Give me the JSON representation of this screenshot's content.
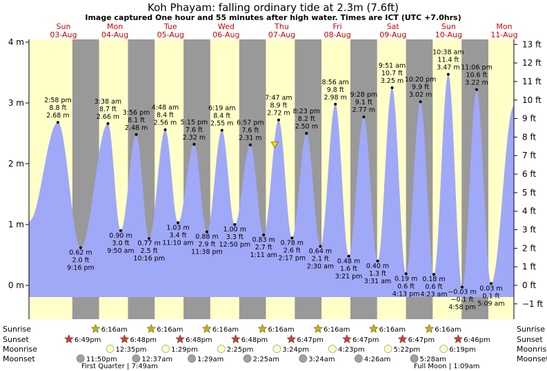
{
  "header": {
    "title": "Koh Phayam: falling  ordinary tide at 2.3m (7.6ft)",
    "subtitle": "Image captured One hour and 55 minutes after high water. Times are ICT (UTC +7.0hrs)"
  },
  "days": [
    {
      "dow": "Sun",
      "date": "03-Aug"
    },
    {
      "dow": "Mon",
      "date": "04-Aug"
    },
    {
      "dow": "Tue",
      "date": "05-Aug"
    },
    {
      "dow": "Wed",
      "date": "06-Aug"
    },
    {
      "dow": "Thu",
      "date": "07-Aug"
    },
    {
      "dow": "Fri",
      "date": "08-Aug"
    },
    {
      "dow": "Sat",
      "date": "09-Aug"
    },
    {
      "dow": "Sun",
      "date": "10-Aug"
    },
    {
      "dow": "Mon",
      "date": "11-Aug"
    }
  ],
  "chart_data": {
    "type": "area",
    "title": "Koh Phayam: falling  ordinary tide at 2.3m (7.6ft)",
    "ylim_m": [
      -0.2,
      4.0
    ],
    "ylim_ft": [
      -1,
      13
    ],
    "left_ticks": [
      "4 m",
      "3 m",
      "2 m",
      "1 m",
      "0 m"
    ],
    "left_tick_values": [
      4,
      3,
      2,
      1,
      0
    ],
    "right_ticks": [
      "13 ft",
      "12 ft",
      "11 ft",
      "10 ft",
      "9 ft",
      "8 ft",
      "7 ft",
      "6 ft",
      "5 ft",
      "4 ft",
      "3 ft",
      "2 ft",
      "1 ft",
      "0 ft",
      "−1 ft"
    ],
    "right_tick_values": [
      13,
      12,
      11,
      10,
      9,
      8,
      7,
      6,
      5,
      4,
      3,
      2,
      1,
      0,
      -1
    ],
    "current": {
      "t": 4.42,
      "m": 2.3
    },
    "tides": [
      {
        "t": 0.52,
        "m": 2.68,
        "type": "high",
        "time": "2:58 pm",
        "ft": "8.8 ft",
        "ml": "2.68 m"
      },
      {
        "t": 0.93,
        "m": 0.62,
        "type": "low",
        "time": "9:16 pm",
        "ft": "2.0 ft",
        "ml": "0.62 m"
      },
      {
        "t": 1.42,
        "m": 2.66,
        "type": "high",
        "time": "3:38 am",
        "ft": "8.7 ft",
        "ml": "2.66 m"
      },
      {
        "t": 1.65,
        "m": 0.9,
        "type": "low",
        "time": "9:50 am",
        "ft": "3.0 ft",
        "ml": "0.90 m"
      },
      {
        "t": 1.93,
        "m": 2.48,
        "type": "high",
        "time": "3:56 pm",
        "ft": "8.1 ft",
        "ml": "2.48 m"
      },
      {
        "t": 2.16,
        "m": 0.77,
        "type": "low",
        "time": "10:16 pm",
        "ft": "2.5 ft",
        "ml": "0.77 m"
      },
      {
        "t": 2.45,
        "m": 2.56,
        "type": "high",
        "time": "4:48 am",
        "ft": "8.4 ft",
        "ml": "2.56 m"
      },
      {
        "t": 2.68,
        "m": 1.03,
        "type": "low",
        "time": "11:10 am",
        "ft": "3.4 ft",
        "ml": "1.03 m"
      },
      {
        "t": 2.97,
        "m": 2.32,
        "type": "high",
        "time": "5:15 pm",
        "ft": "7.6 ft",
        "ml": "2.32 m"
      },
      {
        "t": 3.2,
        "m": 0.88,
        "type": "low",
        "time": "11:38 pm",
        "ft": "2.9 ft",
        "ml": "0.88 m"
      },
      {
        "t": 3.47,
        "m": 2.55,
        "type": "high",
        "time": "6:19 am",
        "ft": "8.4 ft",
        "ml": "2.55 m"
      },
      {
        "t": 3.7,
        "m": 1.0,
        "type": "low",
        "time": "12:50 pm",
        "ft": "3.3 ft",
        "ml": "1.00 m"
      },
      {
        "t": 3.98,
        "m": 2.31,
        "type": "high",
        "time": "6:57 pm",
        "ft": "7.6 ft",
        "ml": "2.31 m"
      },
      {
        "t": 4.22,
        "m": 0.83,
        "type": "low",
        "time": "1:11 am",
        "ft": "2.7 ft",
        "ml": "0.83 m"
      },
      {
        "t": 4.49,
        "m": 2.72,
        "type": "high",
        "time": "7:47 am",
        "ft": "8.9 ft",
        "ml": "2.72 m"
      },
      {
        "t": 4.73,
        "m": 0.78,
        "type": "low",
        "time": "2:17 pm",
        "ft": "2.6 ft",
        "ml": "0.78 m"
      },
      {
        "t": 4.99,
        "m": 2.5,
        "type": "high",
        "time": "8:23 pm",
        "ft": "8.2 ft",
        "ml": "2.50 m"
      },
      {
        "t": 5.24,
        "m": 0.64,
        "type": "low",
        "time": "2:30 am",
        "ft": "2.1 ft",
        "ml": "0.64 m"
      },
      {
        "t": 5.51,
        "m": 2.98,
        "type": "high",
        "time": "8:56 am",
        "ft": "9.8 ft",
        "ml": "2.98 m"
      },
      {
        "t": 5.75,
        "m": 0.48,
        "type": "low",
        "time": "3:21 pm",
        "ft": "1.6 ft",
        "ml": "0.48 m"
      },
      {
        "t": 6.02,
        "m": 2.77,
        "type": "high",
        "time": "9:28 pm",
        "ft": "9.1 ft",
        "ml": "2.77 m"
      },
      {
        "t": 6.27,
        "m": 0.4,
        "type": "low",
        "time": "3:31 am",
        "ft": "1.3 ft",
        "ml": "0.40 m"
      },
      {
        "t": 6.53,
        "m": 3.25,
        "type": "high",
        "time": "9:51 am",
        "ft": "10.7 ft",
        "ml": "3.25 m"
      },
      {
        "t": 6.78,
        "m": 0.19,
        "type": "low",
        "time": "4:13 pm",
        "ft": "0.6 ft",
        "ml": "0.19 m"
      },
      {
        "t": 7.04,
        "m": 3.02,
        "type": "high",
        "time": "10:20 pm",
        "ft": "9.9 ft",
        "ml": "3.02 m"
      },
      {
        "t": 7.28,
        "m": 0.18,
        "type": "low",
        "time": "4:23 am",
        "ft": "0.6 ft",
        "ml": "0.18 m"
      },
      {
        "t": 7.54,
        "m": 3.47,
        "type": "high",
        "time": "10:38 am",
        "ft": "11.4 ft",
        "ml": "3.47 m"
      },
      {
        "t": 7.79,
        "m": -0.03,
        "type": "low",
        "time": "4:58 pm",
        "ft": "−0.1 ft",
        "ml": "−0.03 m"
      },
      {
        "t": 8.05,
        "m": 3.22,
        "type": "high",
        "time": "11:06 pm",
        "ft": "10.6 ft",
        "ml": "3.22 m"
      },
      {
        "t": 8.31,
        "m": 0.03,
        "type": "low",
        "time": "5:09 am",
        "ft": "0.1 ft",
        "ml": "0.03 m"
      }
    ],
    "rows": {
      "sunrise": {
        "label": "Sunrise",
        "times": [
          "6:16am",
          "6:16am",
          "6:16am",
          "6:16am",
          "6:16am",
          "6:16am",
          "6:16am"
        ]
      },
      "sunset": {
        "label": "Sunset",
        "times": [
          "6:49pm",
          "6:48pm",
          "6:48pm",
          "6:48pm",
          "6:47pm",
          "6:47pm",
          "6:47pm",
          "6:46pm"
        ]
      },
      "moonrise": {
        "label": "Moonrise",
        "times": [
          "12:35pm",
          "1:29pm",
          "2:25pm",
          "3:24pm",
          "4:23pm",
          "5:22pm",
          "6:19pm"
        ]
      },
      "moonset": {
        "label": "Moonset",
        "times": [
          "11:50pm",
          "12:37am",
          "1:29am",
          "2:25am",
          "3:24am",
          "4:26am",
          "5:28am"
        ]
      }
    },
    "moon_phases": [
      {
        "text": "First Quarter | 7:49am"
      },
      {
        "text": "Full Moon | 1:09am"
      }
    ],
    "colors": {
      "day_bg": "#ffffc8",
      "night_bg": "#999999",
      "water": "#a0a8f8",
      "day_label": "#d00000",
      "sunrise_star": "#c8b400",
      "sunset_star": "#d04028",
      "moonrise": "#ffffc0",
      "moonset": "#a0a0a0",
      "current_marker": "#f0e000"
    }
  }
}
